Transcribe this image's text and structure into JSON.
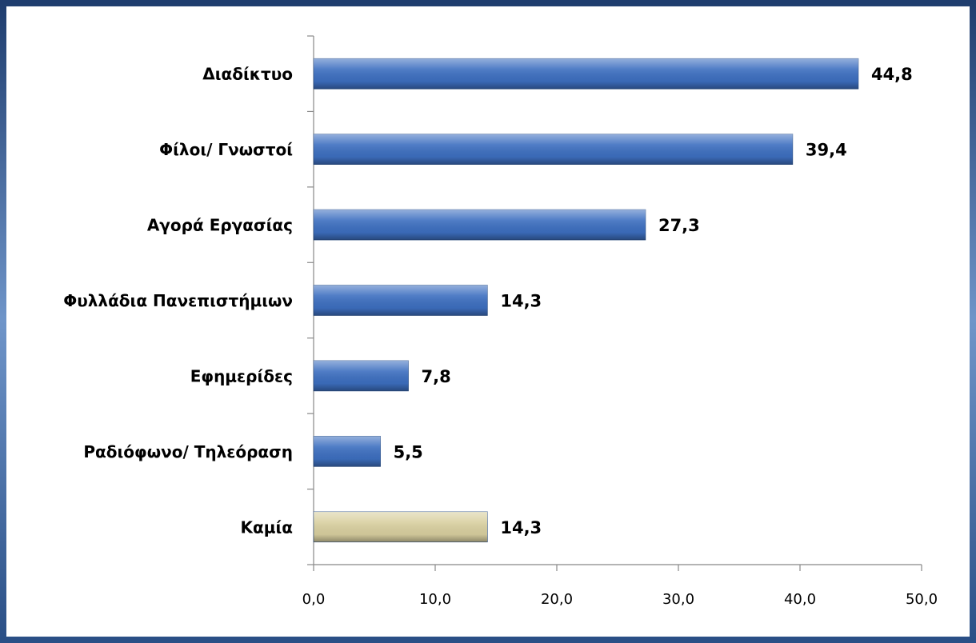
{
  "chart_data": {
    "type": "bar",
    "orientation": "horizontal",
    "categories": [
      "Διαδίκτυο",
      "Φίλοι/ Γνωστοί",
      "Αγορά Εργασίας",
      "Φυλλάδια Πανεπιστήμιων",
      "Εφημερίδες",
      "Ραδιόφωνο/ Τηλεόραση",
      "Καμία"
    ],
    "values": [
      44.8,
      39.4,
      27.3,
      14.3,
      7.8,
      5.5,
      14.3
    ],
    "value_labels": [
      "44,8",
      "39,4",
      "27,3",
      "14,3",
      "7,8",
      "5,5",
      "14,3"
    ],
    "colors": [
      "#3d6fc0",
      "#3d6fc0",
      "#3d6fc0",
      "#3d6fc0",
      "#3d6fc0",
      "#3d6fc0",
      "#d9d0a0"
    ],
    "xlim": [
      0,
      50
    ],
    "xticks": [
      {
        "value": 0,
        "label": "0,0"
      },
      {
        "value": 10,
        "label": "10,0"
      },
      {
        "value": 20,
        "label": "20,0"
      },
      {
        "value": 30,
        "label": "30,0"
      },
      {
        "value": 40,
        "label": "40,0"
      },
      {
        "value": 50,
        "label": "50,0"
      }
    ],
    "grid": false
  }
}
